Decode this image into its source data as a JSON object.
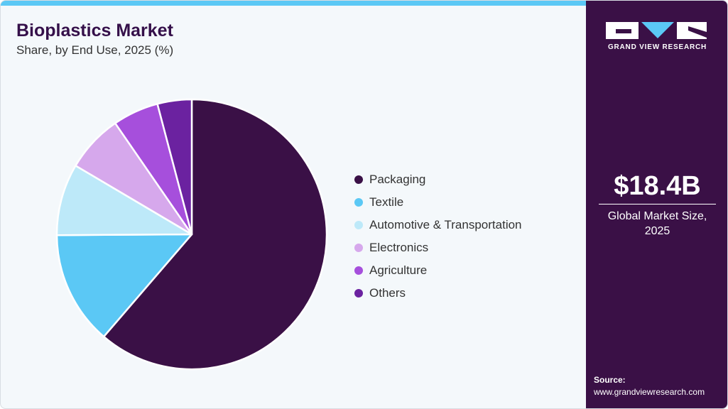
{
  "header": {
    "title": "Bioplastics Market",
    "subtitle": "Share, by End Use, 2025 (%)"
  },
  "brand": {
    "name": "GRAND VIEW RESEARCH"
  },
  "sidebar": {
    "market_size": "$18.4B",
    "caption_line1": "Global Market Size,",
    "caption_line2": "2025",
    "source_label": "Source:",
    "source_url": "www.grandviewresearch.com"
  },
  "colors": {
    "accent": "#5bc8f5",
    "panel": "#3a1046"
  },
  "chart_data": {
    "type": "pie",
    "title": "Bioplastics Market",
    "subtitle": "Share, by End Use, 2025 (%)",
    "legend_position": "right",
    "start_angle": "top, clockwise",
    "categories": [
      "Packaging",
      "Textile",
      "Automotive & Transportation",
      "Electronics",
      "Agriculture",
      "Others"
    ],
    "values": [
      61.3,
      13.6,
      8.6,
      6.9,
      5.5,
      4.1
    ],
    "colors": [
      "#3a1046",
      "#5bc8f5",
      "#bde9f9",
      "#d6a8ec",
      "#a64fdc",
      "#6b22a0"
    ]
  }
}
